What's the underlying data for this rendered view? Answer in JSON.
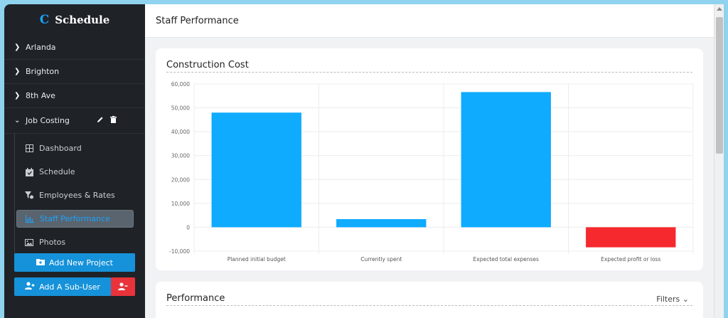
{
  "brand": {
    "logo": "C",
    "title": "Schedule"
  },
  "sidebar": {
    "projects": [
      {
        "label": "Arlanda"
      },
      {
        "label": "Brighton"
      },
      {
        "label": "8th Ave"
      },
      {
        "label": "Job Costing"
      }
    ],
    "sub_items": [
      {
        "label": "Dashboard",
        "icon": "dashboard-grid-icon"
      },
      {
        "label": "Schedule",
        "icon": "calendar-check-icon"
      },
      {
        "label": "Employees & Rates",
        "icon": "filter-dollar-icon"
      },
      {
        "label": "Staff Performance",
        "icon": "bar-chart-icon"
      },
      {
        "label": "Photos",
        "icon": "image-icon"
      }
    ],
    "add_project_label": "Add New Project",
    "add_subuser_label": "Add A Sub-User"
  },
  "header": {
    "title": "Staff Performance"
  },
  "cost_card": {
    "title": "Construction Cost"
  },
  "performance_card": {
    "title": "Performance",
    "filters_label": "Filters"
  },
  "colors": {
    "bar_positive": "#0fabff",
    "bar_negative": "#f5292e",
    "accent": "#1592d9"
  },
  "chart_data": {
    "type": "bar",
    "categories": [
      "Planned initial budget",
      "Currently spent",
      "Expected total expenses",
      "Expected profit or loss"
    ],
    "values": [
      48000,
      3400,
      56600,
      -8400
    ],
    "ylim": [
      -10000,
      60000
    ],
    "yticks": [
      "60,000",
      "50,000",
      "40,000",
      "30,000",
      "20,000",
      "10,000",
      "0",
      "-10,000"
    ],
    "grid": true
  }
}
